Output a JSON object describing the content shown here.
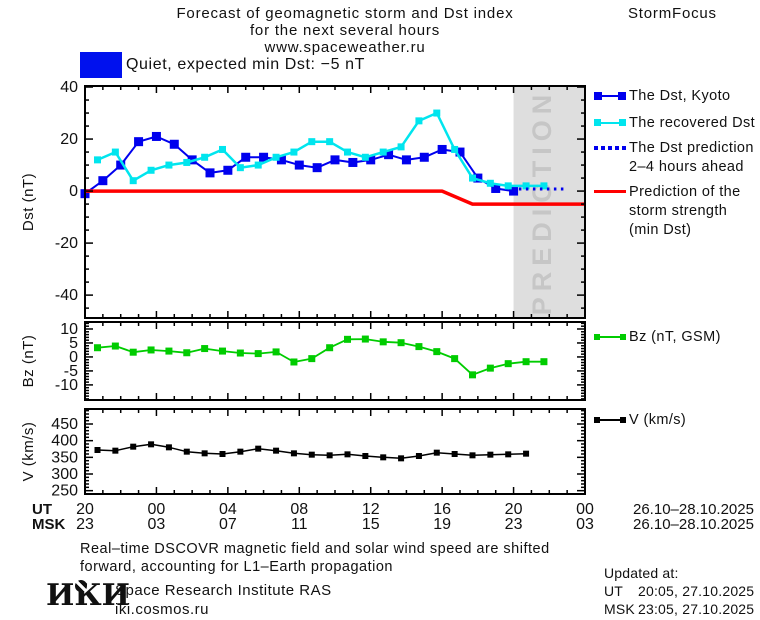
{
  "header": {
    "title_line1": "Forecast of geomagnetic storm and Dst index",
    "title_line2": "for the next several hours",
    "title_line3": "www.spaceweather.ru",
    "brand": "StormFocus"
  },
  "status_banner": {
    "label": "Quiet, expected min Dst: −5 nT",
    "swatch_color": "#0011ee"
  },
  "chart_data": {
    "type": "line",
    "x_axis": {
      "hours_span": 28,
      "major_tick_hours": [
        0,
        4,
        8,
        12,
        16,
        20,
        24,
        28
      ],
      "ut_label": "UT",
      "msk_label": "MSK",
      "ut_tick_labels": [
        "20",
        "00",
        "04",
        "08",
        "12",
        "16",
        "20",
        "00"
      ],
      "msk_tick_labels": [
        "23",
        "03",
        "07",
        "11",
        "15",
        "19",
        "23",
        "03"
      ],
      "date_label": "26.10–28.10.2025"
    },
    "prediction_watermark": "PREDICTION",
    "panels": [
      {
        "id": "dst",
        "ylabel": "Dst (nT)",
        "ylim": [
          -48.8,
          40.4
        ],
        "yticks": [
          40,
          20,
          0,
          -20,
          -40
        ],
        "minor_step": 5,
        "prediction_band_start_hour": 24,
        "series": [
          {
            "name": "The Dst, Kyoto",
            "color": "#0000ee",
            "width": 2,
            "marker_size": 9,
            "start_hour": 0,
            "values": [
              -1,
              4,
              10,
              19,
              21,
              18,
              12,
              7,
              8,
              13,
              13,
              12,
              10,
              9,
              12,
              11,
              12,
              14,
              12,
              13,
              16,
              15,
              5,
              1,
              0
            ]
          },
          {
            "name": "The recovered Dst",
            "color": "#00e5ee",
            "width": 2.5,
            "marker_size": 7,
            "start_hour": 0.7,
            "values": [
              12,
              15,
              4,
              8,
              10,
              11,
              13,
              16,
              9,
              10,
              13,
              15,
              19,
              19,
              15,
              13,
              15,
              17,
              27,
              30,
              16,
              5,
              3,
              2,
              2,
              2
            ]
          },
          {
            "name": "The Dst prediction 2–4 hours ahead",
            "color": "#0000ee",
            "width": 3,
            "style": "dotted",
            "points": [
              [
                24.3,
                0.8
              ],
              [
                26.9,
                0.8
              ]
            ]
          },
          {
            "name": "Prediction of the storm strength (min Dst)",
            "color": "#ff0000",
            "width": 3.5,
            "style": "line",
            "points": [
              [
                0,
                0
              ],
              [
                20,
                0
              ],
              [
                21.7,
                -5
              ],
              [
                28,
                -5
              ]
            ]
          }
        ]
      },
      {
        "id": "bz",
        "ylabel": "Bz (nT)",
        "ylim": [
          -15.4,
          12.5
        ],
        "yticks": [
          10,
          5,
          0,
          -5,
          -10
        ],
        "minor_step": 1,
        "series": [
          {
            "name": "Bz (nT, GSM)",
            "color": "#00cc00",
            "width": 1.8,
            "marker_size": 7,
            "start_hour": 0.7,
            "values": [
              3.3,
              3.9,
              1.7,
              2.5,
              2.1,
              1.5,
              3,
              2.1,
              1.4,
              1.2,
              1.8,
              -1.8,
              -0.6,
              3.3,
              6.3,
              6.4,
              5.4,
              5.1,
              3.7,
              1.9,
              -0.6,
              -6.4,
              -4,
              -2.4,
              -1.7,
              -1.7
            ]
          }
        ]
      },
      {
        "id": "v",
        "ylabel": "V (km/s)",
        "ylim": [
          240,
          495
        ],
        "yticks": [
          450,
          400,
          350,
          300,
          250
        ],
        "minor_step": 10,
        "series": [
          {
            "name": "V (km/s)",
            "color": "#000000",
            "width": 1.5,
            "marker_size": 6,
            "start_hour": 0.7,
            "values": [
              372,
              370,
              382,
              389,
              380,
              367,
              362,
              360,
              367,
              376,
              370,
              362,
              358,
              356,
              359,
              354,
              350,
              347,
              354,
              364,
              360,
              356,
              358,
              359,
              361
            ]
          }
        ]
      }
    ]
  },
  "legends": {
    "dst": [
      {
        "lines": [
          "The Dst, Kyoto"
        ]
      },
      {
        "lines": [
          "The recovered Dst"
        ]
      },
      {
        "lines": [
          "The Dst prediction",
          "2–4 hours ahead"
        ]
      },
      {
        "lines": [
          "Prediction of the",
          "storm strength",
          "(min Dst)"
        ]
      }
    ],
    "bz": {
      "label": "Bz (nT, GSM)"
    },
    "v": {
      "label": "V (km/s)"
    }
  },
  "footer": {
    "note_line1": "Real–time DSCOVR magnetic field and solar wind speed are shifted",
    "note_line2": "forward, accounting for L1–Earth propagation",
    "logo_text": "ИКИ",
    "institute": "Space Research Institute RAS",
    "website": "iki.cosmos.ru",
    "updated_label": "Updated at:",
    "updated_rows": [
      {
        "prefix": "UT",
        "value": "20:05, 27.10.2025"
      },
      {
        "prefix": "MSK",
        "value": "23:05, 27.10.2025"
      }
    ]
  },
  "colors": {
    "dst_kyoto": "#0000ee",
    "recovered_dst": "#00e5ee",
    "prediction_line": "#ff0000",
    "bz": "#00cc00",
    "v": "#000000",
    "prediction_band": "#dedede"
  }
}
